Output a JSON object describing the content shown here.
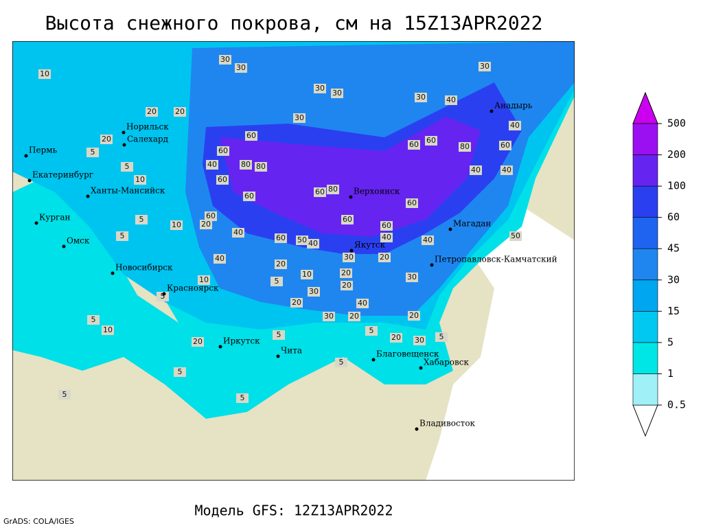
{
  "header": {
    "title": "Высота снежного покрова, см на 15Z13APR2022"
  },
  "footer": {
    "model": "Модель GFS: 12Z13APR2022",
    "credit": "GrADS: COLA/IGES"
  },
  "legend": {
    "levels": [
      0.5,
      1,
      5,
      15,
      30,
      45,
      60,
      100,
      200,
      500
    ],
    "colors": [
      "#ffffff",
      "#a0f0f8",
      "#00e6e6",
      "#00c8f0",
      "#00a6f0",
      "#1f86f0",
      "#1f64f0",
      "#2a40f0",
      "#6624f0",
      "#9a10f0",
      "#cc00f0"
    ]
  },
  "cities": [
    "Норильск",
    "Салехард",
    "Пермь",
    "Екатеринбург",
    "Ханты-Мансийск",
    "Курган",
    "Омск",
    "Новосибирск",
    "Красноярск",
    "Иркутск",
    "Чита",
    "Благовещенск",
    "Хабаровск",
    "Владивосток",
    "Верхоянск",
    "Якутск",
    "Магадан",
    "Петропавловск-Камчатский",
    "Анадырь"
  ],
  "contour_labels": [
    10,
    30,
    30,
    30,
    30,
    30,
    30,
    30,
    20,
    20,
    20,
    40,
    40,
    60,
    60,
    40,
    80,
    80,
    60,
    60,
    80,
    60,
    40,
    40,
    60,
    60,
    60,
    80,
    60,
    60,
    60,
    60,
    40,
    60,
    50,
    40,
    40,
    40,
    50,
    20,
    10,
    5,
    5,
    5,
    5,
    10,
    40,
    20,
    10,
    20,
    20,
    30,
    20,
    30,
    30,
    20,
    40,
    20,
    20,
    30,
    5,
    20,
    30,
    5,
    5,
    5,
    5,
    5,
    5,
    5,
    10,
    20,
    5,
    5,
    10
  ]
}
